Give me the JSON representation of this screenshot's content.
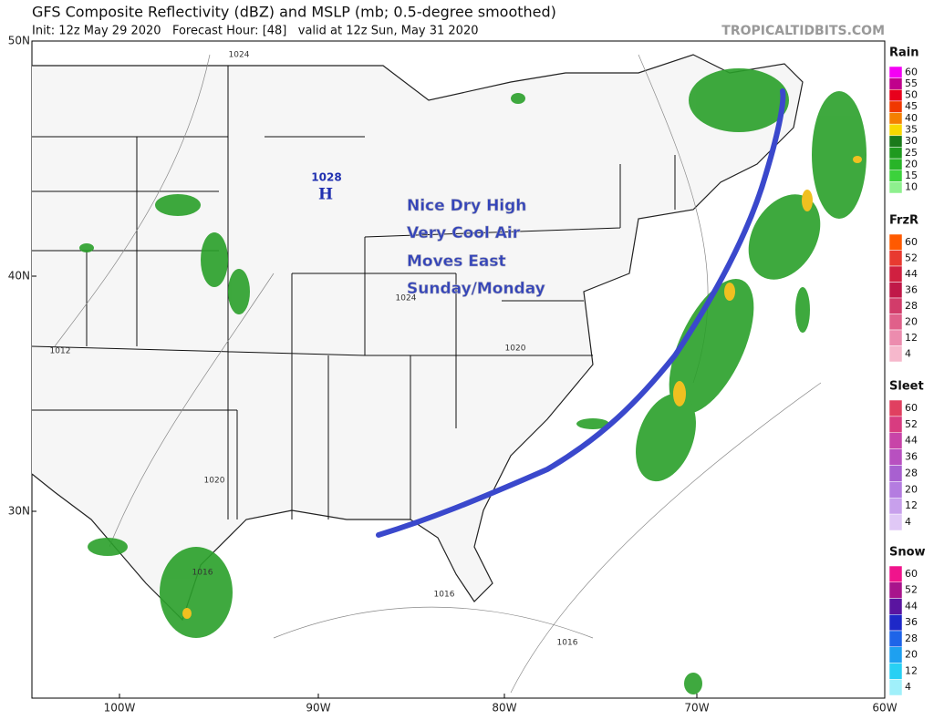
{
  "header": {
    "title": "GFS Composite Reflectivity (dBZ) and MSLP (mb; 0.5-degree smoothed)",
    "subtitle": "Init: 12z May 29 2020   Forecast Hour: [48]   valid at 12z Sun, May 31 2020",
    "site": "TROPICALTIDBITS.COM"
  },
  "map": {
    "lat_labels": [
      "50N",
      "40N",
      "30N"
    ],
    "lon_labels": [
      "100W",
      "90W",
      "80W",
      "70W",
      "60W"
    ],
    "pressure_labels": [
      "1024",
      "1012",
      "1024",
      "1020",
      "1020",
      "1016",
      "1016",
      "1016"
    ],
    "high": {
      "value": "1028",
      "label": "H"
    },
    "annotation": [
      "Nice Dry High",
      "Very Cool Air",
      "Moves East",
      "Sunday/Monday"
    ]
  },
  "legends": [
    {
      "title": "Rain",
      "levels": [
        "60",
        "55",
        "50",
        "45",
        "40",
        "35",
        "30",
        "25",
        "20",
        "15",
        "10"
      ],
      "colors": [
        "#f400f4",
        "#c0008c",
        "#e8001c",
        "#f03800",
        "#f48000",
        "#f8d800",
        "#1a7a1a",
        "#1f9a1f",
        "#28b428",
        "#3cd23c",
        "#8ef08e"
      ]
    },
    {
      "title": "FrzR",
      "levels": [
        "60",
        "52",
        "44",
        "36",
        "28",
        "20",
        "12",
        "4"
      ],
      "colors": [
        "#ff5a00",
        "#e83a30",
        "#d02040",
        "#c01848",
        "#d23c6a",
        "#e0608a",
        "#ec8cae",
        "#f6b8cc"
      ]
    },
    {
      "title": "Sleet",
      "levels": [
        "60",
        "52",
        "44",
        "36",
        "28",
        "20",
        "12",
        "4"
      ],
      "colors": [
        "#e04060",
        "#d83c80",
        "#c844a8",
        "#b850c0",
        "#a860d0",
        "#b47ce0",
        "#c8a0ec",
        "#e0c8f6"
      ]
    },
    {
      "title": "Snow",
      "levels": [
        "60",
        "52",
        "44",
        "36",
        "28",
        "20",
        "12",
        "4"
      ],
      "colors": [
        "#f0148c",
        "#a8148c",
        "#5a14a0",
        "#1e28c8",
        "#1e64e8",
        "#1ea0f0",
        "#28d0f4",
        "#a0f0fa"
      ]
    }
  ]
}
